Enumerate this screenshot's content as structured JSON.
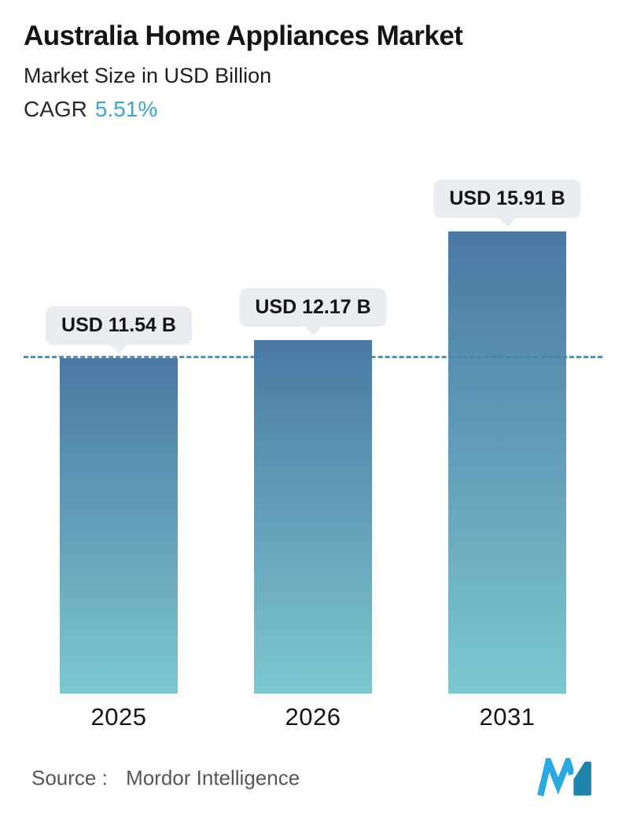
{
  "header": {
    "title": "Australia Home Appliances Market",
    "subtitle": "Market Size in USD Billion",
    "cagr_label": "CAGR",
    "cagr_value": "5.51%"
  },
  "chart_data": {
    "type": "bar",
    "categories": [
      "2025",
      "2026",
      "2031"
    ],
    "values": [
      11.54,
      12.17,
      15.91
    ],
    "value_labels": [
      "USD 11.54 B",
      "USD 12.17 B",
      "USD 15.91 B"
    ],
    "title": "Australia Home Appliances Market",
    "subtitle": "Market Size in USD Billion",
    "cagr": "5.51%",
    "ylabel": "Market Size in USD Billion",
    "xlabel": "",
    "ylim": [
      0,
      17.3
    ],
    "grid": false,
    "legend": false,
    "reference_line": {
      "value": 11.54,
      "style": "dashed"
    }
  },
  "footer": {
    "source_label": "Source :",
    "source_value": "Mordor Intelligence"
  },
  "colors": {
    "accent_teal": "#3ea6cc",
    "bar_top": "#4a79a3",
    "bar_bottom": "#7dc7cf",
    "pill_bg": "#e9edf1",
    "dashed_line": "#4e81a8",
    "logo_blue": "#2aa9df",
    "logo_teal": "#1f85a8"
  }
}
